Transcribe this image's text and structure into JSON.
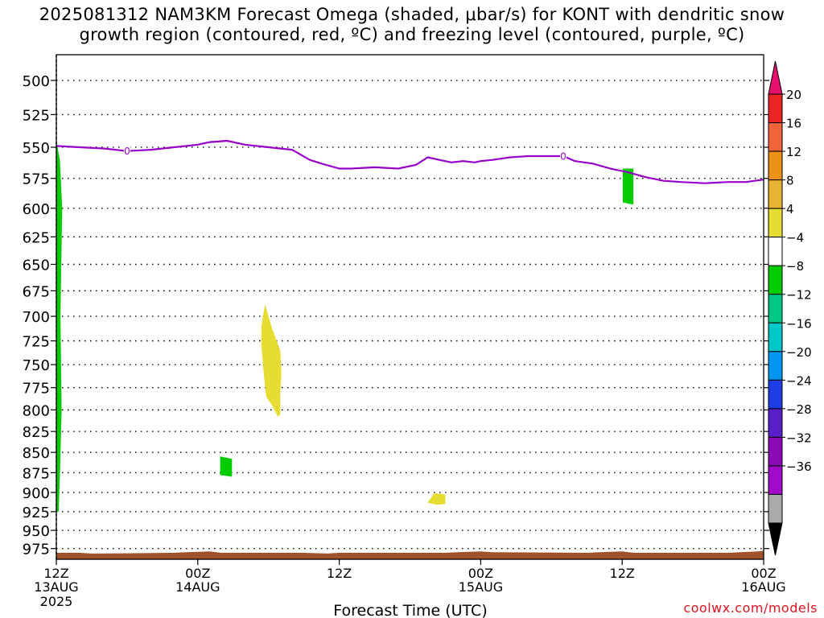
{
  "chart_data": {
    "type": "heatmap",
    "title_lines": [
      "2025081312 NAM3KM Forecast Omega (shaded, μbar/s) for KONT with dendritic snow",
      "growth region (contoured, red, ºC) and freezing level (contoured, purple, ºC)"
    ],
    "xlabel": "Forecast Time (UTC)",
    "x_ticks": [
      {
        "hour": 0,
        "line1": "12Z",
        "line2": "13AUG",
        "line3": "2025"
      },
      {
        "hour": 12,
        "line1": "00Z",
        "line2": "14AUG",
        "line3": ""
      },
      {
        "hour": 24,
        "line1": "12Z",
        "line2": "",
        "line3": ""
      },
      {
        "hour": 36,
        "line1": "00Z",
        "line2": "15AUG",
        "line3": ""
      },
      {
        "hour": 48,
        "line1": "12Z",
        "line2": "",
        "line3": ""
      },
      {
        "hour": 60,
        "line1": "00Z",
        "line2": "16AUG",
        "line3": ""
      }
    ],
    "xlim": [
      0,
      60
    ],
    "ylabel": "",
    "y_ticks": [
      500,
      525,
      550,
      575,
      600,
      625,
      650,
      675,
      700,
      725,
      750,
      775,
      800,
      825,
      850,
      875,
      900,
      925,
      950,
      975
    ],
    "y_axis_type": "log-pressure",
    "ylim": [
      482,
      990
    ],
    "grid": true,
    "freezing_level": {
      "color": "#9900cc",
      "label": "0",
      "label_hours": [
        6,
        43
      ],
      "hours": [
        0,
        2,
        4,
        6,
        8,
        10,
        12,
        13,
        14.5,
        16,
        18,
        20,
        21.5,
        22.5,
        24,
        25,
        27,
        29,
        30.5,
        31.5,
        32.5,
        33.5,
        34.5,
        35.5,
        36,
        37,
        38.5,
        40,
        42,
        43,
        44,
        45.5,
        47,
        48.5,
        50,
        51.5,
        53,
        55,
        57,
        58.5,
        60
      ],
      "pressure": [
        549,
        550,
        551,
        553,
        552,
        550,
        548,
        546,
        545,
        548,
        550,
        552,
        560,
        563,
        567,
        567,
        566,
        567,
        564,
        558,
        560,
        562,
        561,
        562,
        561,
        560,
        558,
        557,
        557,
        557,
        561,
        563,
        567,
        570,
        574,
        577,
        578,
        579,
        578,
        578,
        576
      ]
    },
    "omega_regions": [
      {
        "value_class": "-8 to -4",
        "color": "#00cc00",
        "polygon": [
          [
            0,
            545
          ],
          [
            0.3,
            560
          ],
          [
            0.5,
            600
          ],
          [
            0.35,
            700
          ],
          [
            0.45,
            800
          ],
          [
            0.3,
            880
          ],
          [
            0.2,
            925
          ],
          [
            0,
            925
          ]
        ]
      },
      {
        "value_class": "-8 to -4",
        "color": "#00cc00",
        "polygon": [
          [
            48.05,
            567
          ],
          [
            48.95,
            567
          ],
          [
            48.95,
            597
          ],
          [
            48.05,
            595
          ]
        ]
      },
      {
        "value_class": "-8 to -4",
        "color": "#00cc00",
        "polygon": [
          [
            13.9,
            855
          ],
          [
            14.9,
            858
          ],
          [
            14.9,
            880
          ],
          [
            13.9,
            878
          ]
        ]
      },
      {
        "value_class": "4 to 8",
        "color": "#e6dc32",
        "polygon": [
          [
            17.7,
            688
          ],
          [
            18.0,
            700
          ],
          [
            18.3,
            712
          ],
          [
            19.0,
            735
          ],
          [
            19.1,
            760
          ],
          [
            19.0,
            780
          ],
          [
            19.0,
            805
          ],
          [
            18.8,
            808
          ],
          [
            18.3,
            795
          ],
          [
            17.8,
            785
          ],
          [
            17.6,
            760
          ],
          [
            17.4,
            730
          ],
          [
            17.4,
            710
          ]
        ]
      },
      {
        "value_class": "4 to 8",
        "color": "#e6dc32",
        "polygon": [
          [
            31.5,
            913
          ],
          [
            32.0,
            902
          ],
          [
            32.2,
            901
          ],
          [
            33.0,
            903
          ],
          [
            33.0,
            915
          ],
          [
            32.2,
            916
          ]
        ]
      }
    ],
    "terrain": {
      "color": "#a0522d",
      "hours": [
        0,
        2,
        3,
        4,
        10,
        11,
        13,
        14,
        20,
        21,
        23,
        24,
        33,
        34,
        36,
        37,
        45,
        46,
        48,
        49,
        57,
        58,
        59.5,
        60
      ],
      "pressure": [
        981,
        981,
        982,
        982,
        981,
        980,
        979,
        981,
        981,
        981,
        982,
        981,
        981,
        980,
        979,
        980,
        981,
        980,
        979,
        981,
        981,
        980,
        979,
        978
      ]
    },
    "colorbar": {
      "labels": [
        "20",
        "16",
        "12",
        "8",
        "4",
        "−4",
        "−8",
        "−12",
        "−16",
        "−20",
        "−24",
        "−28",
        "−32",
        "−36"
      ],
      "colors": [
        "#e60f6e",
        "#ee2323",
        "#f0643c",
        "#ee9119",
        "#e6b432",
        "#e6dc32",
        "#ffffff",
        "#00cc00",
        "#00c882",
        "#00c8c8",
        "#0096f0",
        "#1e3ce6",
        "#5a1ec8",
        "#8c0ab4",
        "#a00ac8",
        "#aaaaaa",
        "#000000"
      ]
    }
  },
  "credit": "coolwx.com/models"
}
